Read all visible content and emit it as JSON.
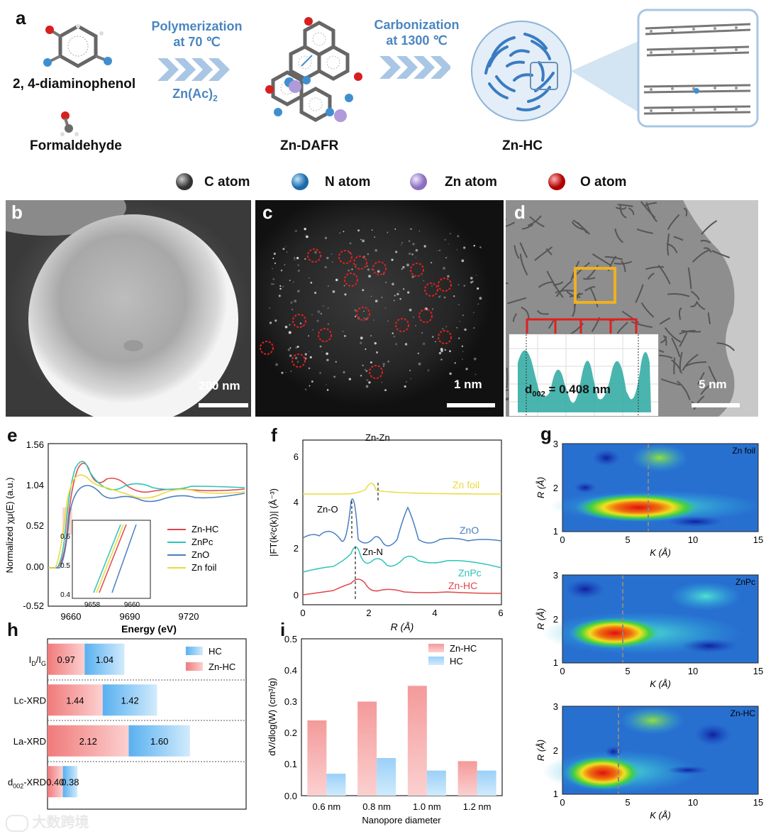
{
  "panel_a": {
    "label": "a",
    "mol1": "2, 4-diaminophenol",
    "mol2": "Formaldehyde",
    "step1_title": "Polymerization",
    "step1_temp": "at 70 ℃",
    "step1_cat": "Zn(Ac)",
    "step1_cat_sub": "2",
    "step2_title": "Carbonization",
    "step2_temp": "at 1300 ℃",
    "prod1": "Zn-DAFR",
    "prod2": "Zn-HC"
  },
  "atom_legend": {
    "c": "C atom",
    "n": "N atom",
    "zn": "Zn atom",
    "o": "O atom",
    "colors": {
      "c": "#6b6b6b",
      "n": "#3f8fd0",
      "zn": "#b09ad8",
      "o": "#d62020"
    }
  },
  "panel_b": {
    "label": "b",
    "scale": "200 nm"
  },
  "panel_c": {
    "label": "c",
    "scale": "1 nm"
  },
  "panel_d": {
    "label": "d",
    "scale": "5 nm",
    "inset": "d",
    "inset_sub": "002",
    "inset_val": " = 0.408 nm"
  },
  "panel_e": {
    "label": "e",
    "ylabel": "Normalized χμ(E) (a.u.)",
    "xlabel": "Energy (eV)",
    "yticks": [
      "1.56",
      "1.04",
      "0.52",
      "0.00",
      "-0.52"
    ],
    "xticks": [
      "9660",
      "9690",
      "9720"
    ],
    "legend": [
      "Zn-HC",
      "ZnPc",
      "ZnO",
      "Zn foil"
    ],
    "colors": [
      "#e0474a",
      "#2ec4b8",
      "#4b7fc0",
      "#eadb3c"
    ],
    "inset_yticks": [
      "0.6",
      "0.5",
      "0.4"
    ],
    "inset_xticks": [
      "9658",
      "9660"
    ]
  },
  "panel_f": {
    "label": "f",
    "ylabel": "|FT(k²c(k))| (Å⁻³)",
    "xlabel": "R (Å)",
    "yticks": [
      "6",
      "4",
      "2",
      "0"
    ],
    "xticks": [
      "0",
      "2",
      "4",
      "6"
    ],
    "series": [
      "Zn foil",
      "ZnO",
      "ZnPc",
      "Zn-HC"
    ],
    "annotations": [
      "Zn-Zn",
      "Zn-O",
      "Zn-N"
    ],
    "colors": [
      "#eadb3c",
      "#4b7fc0",
      "#2ec4b8",
      "#e0474a"
    ]
  },
  "panel_g": {
    "label": "g",
    "ylabel": "R (Å)",
    "xlabel": "K (Å)",
    "plots": [
      {
        "name": "Zn foil",
        "xticks": [
          "0",
          "5",
          "10",
          "15"
        ],
        "yticks": [
          "3",
          "2",
          "1"
        ]
      },
      {
        "name": "ZnPc",
        "xticks": [
          "0",
          "5",
          "10",
          "15"
        ],
        "yticks": [
          "3",
          "2",
          "1"
        ]
      },
      {
        "name": "Zn-HC",
        "xticks": [
          "0",
          "5",
          "10",
          "15"
        ],
        "yticks": [
          "3",
          "2",
          "1"
        ]
      }
    ]
  },
  "panel_h": {
    "label": "h",
    "legend": [
      "HC",
      "Zn-HC"
    ]
  },
  "panel_i": {
    "label": "i",
    "ylabel": "dV/dlog(W) (cm³/g)",
    "xlabel": "Nanopore diameter",
    "yticks": [
      "0.5",
      "0.4",
      "0.3",
      "0.2",
      "0.1",
      "0.0"
    ]
  },
  "watermark": "大数跨境",
  "chart_data": [
    {
      "type": "bar",
      "title": "",
      "orientation": "horizontal",
      "categories": [
        "I_D/I_G",
        "Lc-XRD",
        "La-XRD",
        "d002-XRD"
      ],
      "category_labels": [
        {
          "main": "I",
          "sub": "D",
          "mid": "/I",
          "sub2": "G"
        },
        {
          "main": "Lc-XRD"
        },
        {
          "main": "La-XRD"
        },
        {
          "main": "d",
          "sub": "002",
          "mid": "-XRD"
        }
      ],
      "series": [
        {
          "name": "Zn-HC",
          "values": [
            0.97,
            1.44,
            2.12,
            0.4
          ],
          "labels": [
            "0.97",
            "1.44",
            "2.12",
            "0.40"
          ]
        },
        {
          "name": "HC",
          "values": [
            1.04,
            1.42,
            1.6,
            0.38
          ],
          "labels": [
            "1.04",
            "1.42",
            "1.60",
            "0.38"
          ]
        }
      ],
      "stacked": true
    },
    {
      "type": "bar",
      "title": "",
      "categories": [
        "0.6 nm",
        "0.8 nm",
        "1.0 nm",
        "1.2 nm"
      ],
      "series": [
        {
          "name": "Zn-HC",
          "values": [
            0.24,
            0.3,
            0.35,
            0.11
          ]
        },
        {
          "name": "HC",
          "values": [
            0.07,
            0.12,
            0.08,
            0.08
          ]
        }
      ],
      "ylim": [
        0,
        0.5
      ],
      "xlabel": "Nanopore diameter",
      "ylabel": "dV/dlog(W) (cm³/g)"
    }
  ]
}
